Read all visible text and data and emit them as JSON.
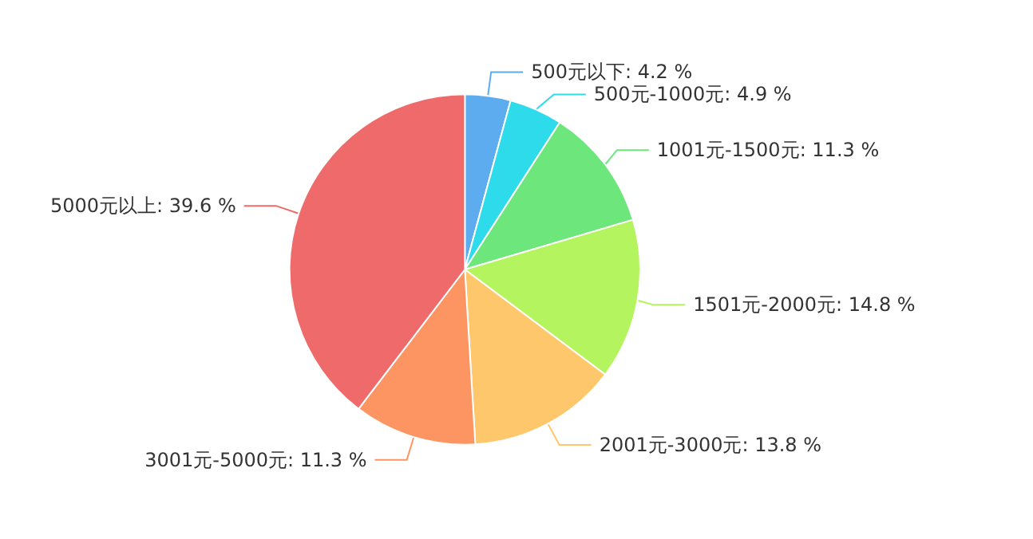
{
  "chart_data": {
    "type": "pie",
    "categories": [
      "500元以下",
      "500元-1000元",
      "1001元-1500元",
      "1501元-2000元",
      "2001元-3000元",
      "3001元-5000元",
      "5000元以上"
    ],
    "values": [
      4.2,
      4.9,
      11.3,
      14.8,
      13.8,
      11.3,
      39.6
    ],
    "value_labels": [
      "4.2 %",
      "4.9 %",
      "11.3 %",
      "14.8 %",
      "13.8 %",
      "11.3 %",
      "39.6 %"
    ],
    "colors": [
      "#5eacf0",
      "#2ddbeb",
      "#6de67b",
      "#b4f55f",
      "#fec76c",
      "#fd9563",
      "#ef6b6b"
    ],
    "legend": false
  }
}
